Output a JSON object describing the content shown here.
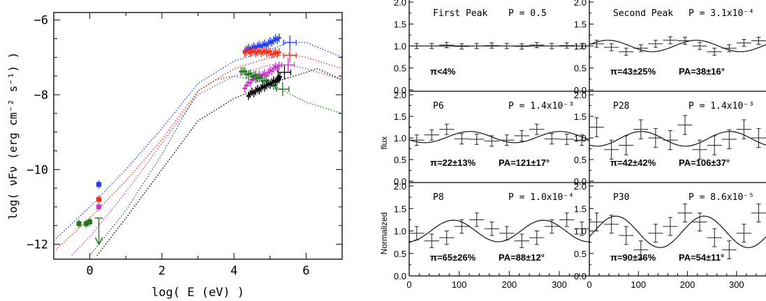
{
  "colors": {
    "blue": "#1a3cff",
    "red": "#ff2a10",
    "magenta": "#cc33cc",
    "green": "#1a7a1a",
    "black": "#000000",
    "curve": "#111111"
  },
  "chart_data": [
    {
      "type": "scatter",
      "xlabel": "log( E (eV) )",
      "ylabel": "log( νFν (erg cm⁻² s⁻¹) )",
      "xlim": [
        -1,
        7
      ],
      "ylim": [
        -12.4,
        -5.8
      ],
      "x_ticks": [
        0,
        2,
        4,
        6
      ],
      "y_ticks": [
        -6,
        -8,
        -10,
        -12
      ],
      "x_tick_labels": [
        "0",
        "2",
        "4",
        "6"
      ],
      "y_tick_labels": [
        "−6",
        "−8",
        "−10",
        "−12"
      ],
      "series": [
        {
          "color": "blue",
          "model_curve": [
            [
              -1,
              -11.9
            ],
            [
              0,
              -11.0
            ],
            [
              1,
              -10.0
            ],
            [
              2,
              -8.9
            ],
            [
              3,
              -7.7
            ],
            [
              4,
              -7.1
            ],
            [
              5,
              -6.8
            ],
            [
              5.5,
              -6.6
            ],
            [
              6,
              -6.6
            ],
            [
              7,
              -7.0
            ]
          ],
          "optical": [
            [
              0.25,
              -10.4
            ]
          ],
          "xray": [
            [
              4.3,
              -6.8
            ],
            [
              4.5,
              -6.75
            ],
            [
              4.7,
              -6.7
            ],
            [
              4.9,
              -6.65
            ],
            [
              5.1,
              -6.55
            ],
            [
              5.3,
              -6.45
            ]
          ],
          "xray_hard": [
            [
              5.55,
              -6.6
            ]
          ]
        },
        {
          "color": "red",
          "model_curve": [
            [
              -1,
              -12.2
            ],
            [
              0,
              -11.3
            ],
            [
              1,
              -10.3
            ],
            [
              2,
              -9.2
            ],
            [
              3,
              -7.9
            ],
            [
              4,
              -7.3
            ],
            [
              5,
              -7.0
            ],
            [
              5.5,
              -6.9
            ],
            [
              6,
              -7.0
            ],
            [
              7,
              -7.3
            ]
          ],
          "optical": [
            [
              0.25,
              -10.8
            ]
          ],
          "xray": [
            [
              4.3,
              -6.85
            ],
            [
              4.5,
              -6.85
            ],
            [
              4.7,
              -6.85
            ],
            [
              4.9,
              -6.85
            ],
            [
              5.1,
              -6.9
            ],
            [
              5.3,
              -6.85
            ]
          ],
          "xray_hard": [
            [
              5.55,
              -6.95
            ]
          ]
        },
        {
          "color": "magenta",
          "model_curve": [
            [
              -0.5,
              -12.3
            ],
            [
              0,
              -11.8
            ],
            [
              1,
              -10.6
            ],
            [
              2,
              -9.3
            ],
            [
              3,
              -8.0
            ],
            [
              4,
              -7.5
            ],
            [
              5,
              -7.2
            ],
            [
              5.5,
              -7.2
            ],
            [
              6,
              -7.3
            ],
            [
              7,
              -7.6
            ]
          ],
          "optical": [
            [
              0.25,
              -11.0
            ]
          ],
          "xray": [
            [
              4.3,
              -7.8
            ],
            [
              4.5,
              -7.6
            ],
            [
              4.7,
              -7.5
            ],
            [
              4.9,
              -7.45
            ],
            [
              5.1,
              -7.3
            ],
            [
              5.3,
              -7.2
            ]
          ],
          "xray_hard": [
            [
              5.5,
              -7.2
            ]
          ]
        },
        {
          "color": "green",
          "model_curve": [
            [
              0.0,
              -12.3
            ],
            [
              1,
              -11.1
            ],
            [
              2,
              -9.6
            ],
            [
              3,
              -7.9
            ],
            [
              3.5,
              -7.6
            ],
            [
              4,
              -7.5
            ],
            [
              5,
              -7.7
            ],
            [
              6,
              -8.2
            ],
            [
              7,
              -8.5
            ]
          ],
          "optical": [
            [
              -0.3,
              -11.45
            ],
            [
              -0.1,
              -11.45
            ],
            [
              0.0,
              -11.4
            ]
          ],
          "upper_limit": [
            [
              0.25,
              -11.3
            ]
          ],
          "xray": [
            [
              4.2,
              -7.35
            ],
            [
              4.4,
              -7.45
            ],
            [
              4.6,
              -7.5
            ],
            [
              4.8,
              -7.6
            ],
            [
              5.0,
              -7.7
            ],
            [
              5.2,
              -7.75
            ]
          ],
          "xray_hard": [
            [
              5.35,
              -7.85
            ]
          ]
        },
        {
          "color": "black",
          "model_curve": [
            [
              0.2,
              -12.3
            ],
            [
              1,
              -11.3
            ],
            [
              2,
              -10.0
            ],
            [
              3,
              -8.7
            ],
            [
              4,
              -8.1
            ],
            [
              5,
              -7.7
            ],
            [
              6,
              -7.4
            ],
            [
              6.3,
              -7.3
            ],
            [
              7,
              -7.6
            ]
          ],
          "xray": [
            [
              4.4,
              -8.0
            ],
            [
              4.6,
              -7.9
            ],
            [
              4.8,
              -7.8
            ],
            [
              5.0,
              -7.7
            ],
            [
              5.2,
              -7.6
            ],
            [
              5.3,
              -7.5
            ]
          ],
          "xray_hard": [
            [
              5.4,
              -7.4
            ]
          ]
        }
      ]
    },
    {
      "type": "line",
      "xlabel": "",
      "ylabel": "Normalized flux",
      "xlim": [
        0,
        360
      ],
      "ylim": [
        0,
        2
      ],
      "x_ticks": [
        0,
        100,
        200,
        300
      ],
      "y_ticks": [
        0.0,
        0.5,
        1.0,
        1.5,
        2.0
      ],
      "x_tick_labels": [
        "0",
        "100",
        "200",
        "300"
      ],
      "y_tick_labels": [
        "0.0",
        "0.5",
        "1.0",
        "1.5",
        "2.0"
      ],
      "panels": [
        {
          "name": "First Peak",
          "prob": "P = 0.5",
          "pi": "π<4%",
          "pa": "",
          "mean": 1.0,
          "amp": 0.0,
          "pa_deg": 0,
          "points": [
            [
              15,
              1.0
            ],
            [
              45,
              1.0
            ],
            [
              75,
              1.02
            ],
            [
              105,
              0.99
            ],
            [
              135,
              1.0
            ],
            [
              165,
              1.01
            ],
            [
              195,
              1.0
            ],
            [
              225,
              0.99
            ],
            [
              255,
              1.02
            ],
            [
              285,
              1.0
            ],
            [
              315,
              1.01
            ],
            [
              345,
              1.0
            ]
          ],
          "err": 0.06
        },
        {
          "name": "Second Peak",
          "prob": "P = 3.1x10⁻⁴",
          "pi": "π=43±25%",
          "pa": "PA=38±16°",
          "mean": 1.0,
          "amp": 0.13,
          "pa_deg": 38,
          "points": [
            [
              15,
              1.05
            ],
            [
              45,
              0.97
            ],
            [
              75,
              0.87
            ],
            [
              105,
              0.95
            ],
            [
              135,
              1.05
            ],
            [
              165,
              1.13
            ],
            [
              195,
              1.12
            ],
            [
              225,
              1.0
            ],
            [
              255,
              0.87
            ],
            [
              285,
              0.95
            ],
            [
              315,
              1.07
            ],
            [
              345,
              1.12
            ]
          ],
          "err": 0.08
        },
        {
          "name": "P6",
          "prob": "P = 1.4x10⁻³",
          "pi": "π=22±13%",
          "pa": "PA=121±17°",
          "mean": 1.02,
          "amp": 0.13,
          "pa_deg": 121,
          "points": [
            [
              15,
              0.95
            ],
            [
              45,
              1.07
            ],
            [
              75,
              1.2
            ],
            [
              105,
              0.98
            ],
            [
              135,
              0.97
            ],
            [
              165,
              0.93
            ],
            [
              195,
              0.95
            ],
            [
              225,
              1.05
            ],
            [
              255,
              1.2
            ],
            [
              285,
              0.98
            ],
            [
              315,
              0.97
            ],
            [
              345,
              0.95
            ]
          ],
          "err": 0.12
        },
        {
          "name": "P28",
          "prob": "P = 1.4x10⁻³",
          "pi": "π=42±42%",
          "pa": "PA=106±37°",
          "mean": 0.98,
          "amp": 0.17,
          "pa_deg": 106,
          "points": [
            [
              15,
              1.25
            ],
            [
              45,
              0.73
            ],
            [
              75,
              0.83
            ],
            [
              105,
              1.2
            ],
            [
              135,
              1.0
            ],
            [
              165,
              0.95
            ],
            [
              195,
              1.3
            ],
            [
              225,
              0.73
            ],
            [
              255,
              0.83
            ],
            [
              285,
              0.97
            ],
            [
              315,
              1.2
            ],
            [
              345,
              1.0
            ]
          ],
          "err": 0.22
        },
        {
          "name": "P8",
          "prob": "P = 1.0x10⁻⁴",
          "pi": "π=65±26%",
          "pa": "PA=88±12°",
          "mean": 1.0,
          "amp": 0.24,
          "pa_deg": 88,
          "points": [
            [
              15,
              0.95
            ],
            [
              45,
              0.78
            ],
            [
              75,
              0.85
            ],
            [
              105,
              1.1
            ],
            [
              135,
              1.25
            ],
            [
              165,
              1.05
            ],
            [
              195,
              0.95
            ],
            [
              225,
              0.78
            ],
            [
              255,
              0.85
            ],
            [
              285,
              1.1
            ],
            [
              315,
              1.25
            ],
            [
              345,
              1.05
            ]
          ],
          "err": 0.15
        },
        {
          "name": "P30",
          "prob": "P = 8.6x10⁻⁵",
          "pi": "π=90±36%",
          "pa": "PA=54±11°",
          "mean": 0.98,
          "amp": 0.35,
          "pa_deg": 54,
          "points": [
            [
              15,
              1.2
            ],
            [
              45,
              1.15
            ],
            [
              75,
              0.9
            ],
            [
              105,
              0.58
            ],
            [
              135,
              0.95
            ],
            [
              165,
              1.1
            ],
            [
              195,
              1.4
            ],
            [
              225,
              1.2
            ],
            [
              255,
              0.85
            ],
            [
              285,
              0.58
            ],
            [
              315,
              0.95
            ],
            [
              345,
              1.4
            ]
          ],
          "err": 0.2
        }
      ]
    }
  ]
}
